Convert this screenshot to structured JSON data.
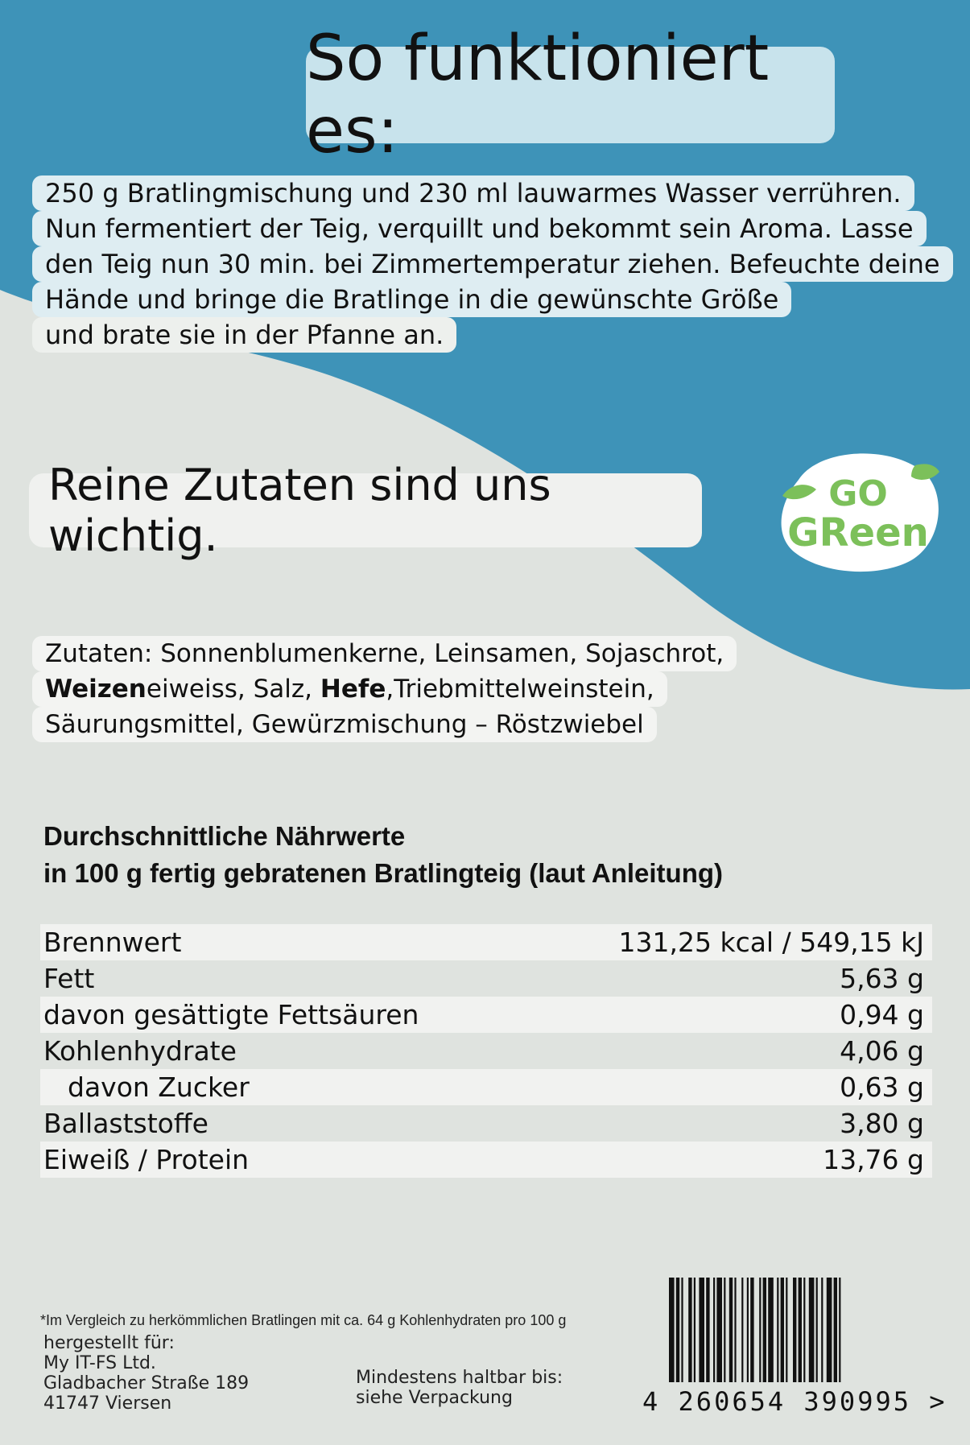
{
  "header": {
    "title": "So funktioniert es:"
  },
  "instructions": {
    "lines": [
      "250 g Bratlingmischung und 230 ml lauwarmes Wasser verrühren.",
      "Nun fermentiert der Teig, verquillt und bekommt sein Aroma. Lasse",
      "den Teig nun 30 min. bei Zimmertemperatur ziehen. Befeuchte deine",
      "Hände und bringe die Bratlinge in die gewünschte Größe",
      "und brate sie in der Pfanne an."
    ]
  },
  "tagline": "Reine Zutaten sind uns wichtig.",
  "logo": {
    "line1": "GO",
    "line2": "GReen"
  },
  "ingredients": {
    "line1": "Zutaten: Sonnenblumenkerne, Leinsamen, Sojaschrot,",
    "line2_bold1": "Weizen",
    "line2_a": "eiweiss, Salz, ",
    "line2_bold2": "Hefe",
    "line2_b": ",Triebmittelweinstein,",
    "line3": "Säurungsmittel, Gewürzmischung – Röstzwiebel"
  },
  "nutrition": {
    "heading1": "Durchschnittliche Nährwerte",
    "heading2": "in 100 g fertig gebratenen Bratlingteig (laut Anleitung)",
    "rows": [
      {
        "label": "Brennwert",
        "value": "131,25 kcal / 549,15 kJ"
      },
      {
        "label": "Fett",
        "value": "5,63 g"
      },
      {
        "label": "davon gesättigte Fettsäuren",
        "value": "0,94 g"
      },
      {
        "label": "Kohlenhydrate",
        "value": "4,06 g"
      },
      {
        "label": "davon Zucker",
        "value": "0,63 g"
      },
      {
        "label": "Ballaststoffe",
        "value": "3,80 g"
      },
      {
        "label": "Eiweiß / Protein",
        "value": "13,76 g"
      }
    ]
  },
  "footnote": "*Im Vergleich zu herkömmlichen Bratlingen mit ca. 64 g Kohlenhydraten pro 100 g",
  "address": {
    "line1": "hergestellt für:",
    "line2": "My IT-FS Ltd.",
    "line3": "Gladbacher Straße 189",
    "line4": "41747 Viersen"
  },
  "best_before": {
    "line1": "Mindestens haltbar bis:",
    "line2": "siehe Verpackung"
  },
  "barcode": {
    "digits": "4 260654 390995 >"
  },
  "colors": {
    "blue": "#3e93b8",
    "background": "#dfe3df",
    "green": "#7cc05a"
  }
}
